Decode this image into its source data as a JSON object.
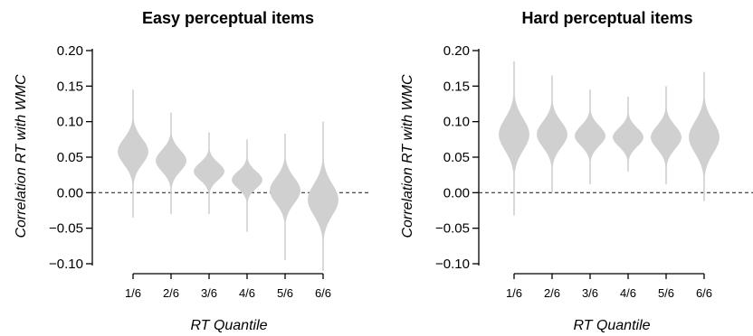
{
  "chart_data": [
    {
      "type": "violin",
      "title": "Easy perceptual items",
      "xlabel": "RT Quantile",
      "ylabel": "Correlation RT with WMC",
      "ylim": [
        -0.11,
        0.21
      ],
      "yticks": [
        0.2,
        0.15,
        0.1,
        0.05,
        0.0,
        -0.05,
        -0.1
      ],
      "ytick_labels": [
        "0.20",
        "0.15",
        "0.10",
        "0.05",
        "0.00",
        "−0.05",
        "−0.10"
      ],
      "categories": [
        "1/6",
        "2/6",
        "3/6",
        "4/6",
        "5/6",
        "6/6"
      ],
      "reference_line": 0,
      "violin_color": "#d0d0d0",
      "violins": [
        {
          "category": "1/6",
          "center": 0.058,
          "min": -0.035,
          "max": 0.145,
          "sd": 0.018
        },
        {
          "category": "2/6",
          "center": 0.045,
          "min": -0.03,
          "max": 0.113,
          "sd": 0.015
        },
        {
          "category": "3/6",
          "center": 0.03,
          "min": -0.03,
          "max": 0.085,
          "sd": 0.012
        },
        {
          "category": "4/6",
          "center": 0.018,
          "min": -0.055,
          "max": 0.075,
          "sd": 0.012
        },
        {
          "category": "5/6",
          "center": 0.003,
          "min": -0.095,
          "max": 0.083,
          "sd": 0.018
        },
        {
          "category": "6/6",
          "center": -0.01,
          "min": -0.11,
          "max": 0.1,
          "sd": 0.022
        }
      ]
    },
    {
      "type": "violin",
      "title": "Hard perceptual items",
      "xlabel": "RT Quantile",
      "ylabel": "Correlation RT with WMC",
      "ylim": [
        -0.11,
        0.21
      ],
      "yticks": [
        0.2,
        0.15,
        0.1,
        0.05,
        0.0,
        -0.05,
        -0.1
      ],
      "ytick_labels": [
        "0.20",
        "0.15",
        "0.10",
        "0.05",
        "0.00",
        "−0.05",
        "−0.10"
      ],
      "categories": [
        "1/6",
        "2/6",
        "3/6",
        "4/6",
        "5/6",
        "6/6"
      ],
      "reference_line": 0,
      "violin_color": "#d0d0d0",
      "violins": [
        {
          "category": "1/6",
          "center": 0.082,
          "min": -0.032,
          "max": 0.185,
          "sd": 0.022
        },
        {
          "category": "2/6",
          "center": 0.082,
          "min": 0.0,
          "max": 0.165,
          "sd": 0.018
        },
        {
          "category": "3/6",
          "center": 0.08,
          "min": 0.012,
          "max": 0.145,
          "sd": 0.014
        },
        {
          "category": "4/6",
          "center": 0.078,
          "min": 0.03,
          "max": 0.135,
          "sd": 0.013
        },
        {
          "category": "5/6",
          "center": 0.078,
          "min": 0.012,
          "max": 0.15,
          "sd": 0.016
        },
        {
          "category": "6/6",
          "center": 0.078,
          "min": -0.012,
          "max": 0.17,
          "sd": 0.022
        }
      ]
    }
  ]
}
